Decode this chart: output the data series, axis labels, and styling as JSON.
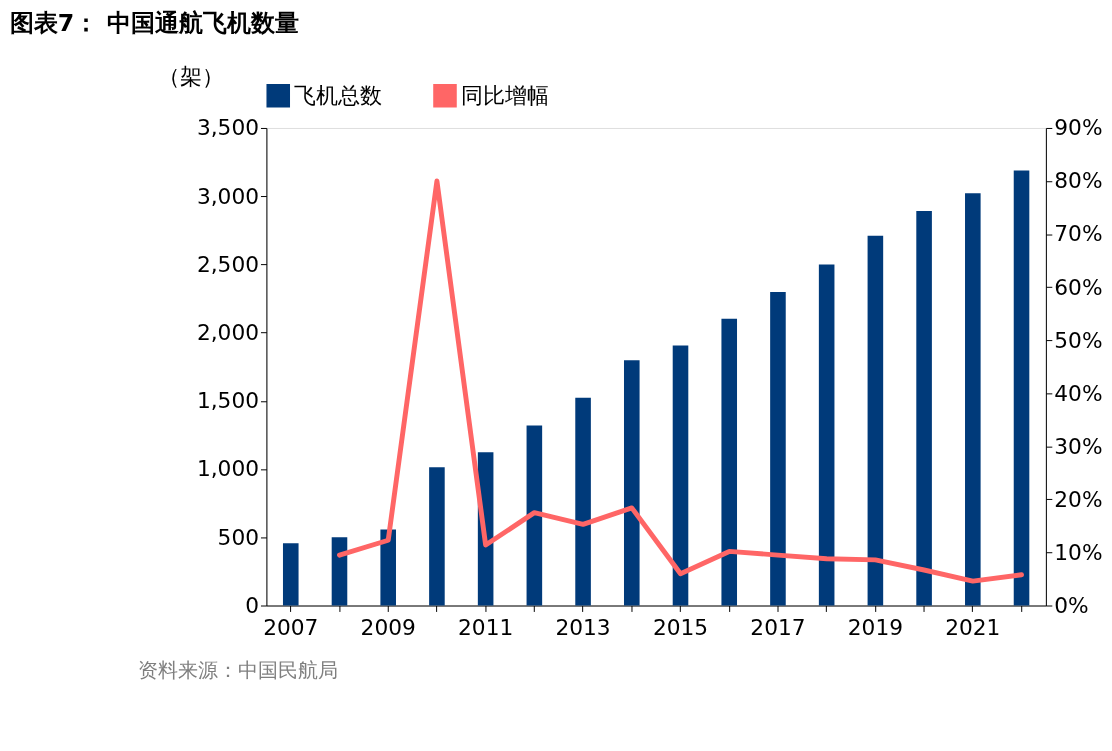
{
  "chart_data": {
    "type": "bar",
    "title": "图表7：  中国通航飞机数量",
    "ylabel": "（架）",
    "categories": [
      "2007",
      null,
      "2009",
      null,
      "2011",
      null,
      "2013",
      null,
      "2015",
      null,
      "2017",
      null,
      "2019",
      null,
      "2021",
      null
    ],
    "series": [
      {
        "name": "飞机总数",
        "color": "#003a7a",
        "values": [
          456,
          500,
          558,
          1014,
          1123,
          1319,
          1522,
          1797,
          1906,
          2101,
          2297,
          2500,
          2710,
          2891,
          3022,
          3188
        ]
      },
      {
        "name": "同比增幅",
        "type": "line",
        "axis": "y2",
        "color": "#ff6666",
        "values": [
          null,
          9.5,
          12.3,
          80,
          11.4,
          17.5,
          15.3,
          18.4,
          6.0,
          10.2,
          9.5,
          8.8,
          8.6,
          6.7,
          4.6,
          5.8
        ]
      }
    ],
    "ylim": [
      0,
      3500
    ],
    "yticks": [
      {
        "value": 0,
        "label": "0"
      },
      {
        "value": 500,
        "label": "500"
      },
      {
        "value": 1000,
        "label": "1,000"
      },
      {
        "value": 1500,
        "label": "1,500"
      },
      {
        "value": 2000,
        "label": "2,000"
      },
      {
        "value": 2500,
        "label": "2,500"
      },
      {
        "value": 3000,
        "label": "3,000"
      },
      {
        "value": 3500,
        "label": "3,500"
      }
    ],
    "y2lim": [
      0,
      90
    ],
    "y2ticks": [
      {
        "value": 0,
        "label": "0%"
      },
      {
        "value": 10,
        "label": "10%"
      },
      {
        "value": 20,
        "label": "20%"
      },
      {
        "value": 30,
        "label": "30%"
      },
      {
        "value": 40,
        "label": "40%"
      },
      {
        "value": 50,
        "label": "50%"
      },
      {
        "value": 60,
        "label": "60%"
      },
      {
        "value": 70,
        "label": "70%"
      },
      {
        "value": 80,
        "label": "80%"
      },
      {
        "value": 90,
        "label": "90%"
      }
    ],
    "legend": "top",
    "grid": false,
    "annotations": [
      "资料来源：中国民航局"
    ]
  }
}
